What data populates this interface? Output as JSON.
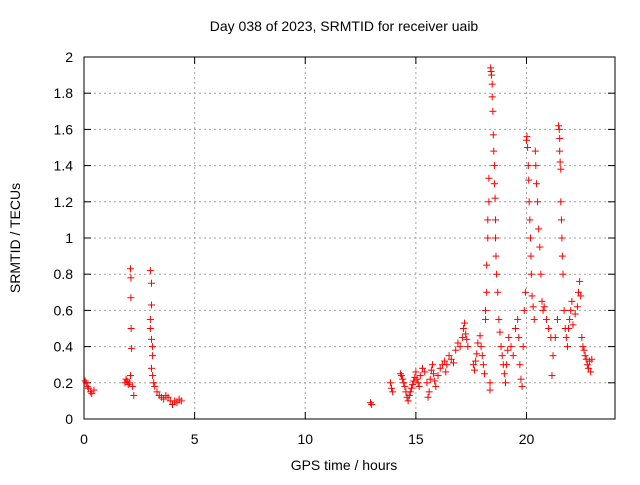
{
  "chart_data": {
    "type": "scatter",
    "title": "Day 038 of 2023, SRMTID for receiver uaib",
    "xlabel": "GPS time / hours",
    "ylabel": "SRMTID / TECUs",
    "xlim": [
      0,
      24
    ],
    "ylim": [
      0,
      2
    ],
    "xticks": [
      0,
      5,
      10,
      15,
      20
    ],
    "xtick_labels": [
      "0",
      "5",
      "10",
      "15",
      "20"
    ],
    "yticks": [
      0,
      0.2,
      0.4,
      0.6,
      0.8,
      1,
      1.2,
      1.4,
      1.6,
      1.8,
      2
    ],
    "ytick_labels": [
      "0",
      "0.2",
      "0.4",
      "0.6",
      "0.8",
      "1",
      "1.2",
      "1.4",
      "1.6",
      "1.8",
      "2"
    ],
    "grid": true,
    "marker": "+",
    "color": "#ff0000",
    "series": [
      {
        "name": "SRMTID",
        "points": [
          [
            0.05,
            0.21
          ],
          [
            0.1,
            0.2
          ],
          [
            0.15,
            0.18
          ],
          [
            0.2,
            0.17
          ],
          [
            0.3,
            0.15
          ],
          [
            0.35,
            0.14
          ],
          [
            0.45,
            0.16
          ],
          [
            1.85,
            0.2
          ],
          [
            1.9,
            0.22
          ],
          [
            1.95,
            0.21
          ],
          [
            2.0,
            0.19
          ],
          [
            2.05,
            0.2
          ],
          [
            2.1,
            0.24
          ],
          [
            2.1,
            0.83
          ],
          [
            2.12,
            0.78
          ],
          [
            2.12,
            0.67
          ],
          [
            2.13,
            0.5
          ],
          [
            2.15,
            0.39
          ],
          [
            2.2,
            0.18
          ],
          [
            2.25,
            0.13
          ],
          [
            3.0,
            0.82
          ],
          [
            3.05,
            0.75
          ],
          [
            3.05,
            0.63
          ],
          [
            3.0,
            0.55
          ],
          [
            3.0,
            0.5
          ],
          [
            3.05,
            0.44
          ],
          [
            3.1,
            0.4
          ],
          [
            3.1,
            0.35
          ],
          [
            3.05,
            0.28
          ],
          [
            3.1,
            0.24
          ],
          [
            3.15,
            0.2
          ],
          [
            3.2,
            0.18
          ],
          [
            3.3,
            0.15
          ],
          [
            3.4,
            0.13
          ],
          [
            3.5,
            0.12
          ],
          [
            3.6,
            0.11
          ],
          [
            3.7,
            0.13
          ],
          [
            3.8,
            0.12
          ],
          [
            3.9,
            0.1
          ],
          [
            4.0,
            0.08
          ],
          [
            4.1,
            0.1
          ],
          [
            4.2,
            0.09
          ],
          [
            4.3,
            0.11
          ],
          [
            4.4,
            0.1
          ],
          [
            12.95,
            0.09
          ],
          [
            13.0,
            0.08
          ],
          [
            13.85,
            0.2
          ],
          [
            13.9,
            0.17
          ],
          [
            13.95,
            0.15
          ],
          [
            14.3,
            0.25
          ],
          [
            14.35,
            0.24
          ],
          [
            14.4,
            0.22
          ],
          [
            14.45,
            0.2
          ],
          [
            14.5,
            0.18
          ],
          [
            14.55,
            0.15
          ],
          [
            14.6,
            0.12
          ],
          [
            14.65,
            0.1
          ],
          [
            14.7,
            0.13
          ],
          [
            14.75,
            0.15
          ],
          [
            14.8,
            0.17
          ],
          [
            14.85,
            0.19
          ],
          [
            14.9,
            0.21
          ],
          [
            14.95,
            0.23
          ],
          [
            15.0,
            0.26
          ],
          [
            15.05,
            0.22
          ],
          [
            15.1,
            0.2
          ],
          [
            15.15,
            0.18
          ],
          [
            15.2,
            0.24
          ],
          [
            15.3,
            0.28
          ],
          [
            15.4,
            0.26
          ],
          [
            15.5,
            0.2
          ],
          [
            15.55,
            0.12
          ],
          [
            15.6,
            0.15
          ],
          [
            15.65,
            0.22
          ],
          [
            15.7,
            0.27
          ],
          [
            15.75,
            0.3
          ],
          [
            15.8,
            0.25
          ],
          [
            15.85,
            0.21
          ],
          [
            15.9,
            0.18
          ],
          [
            16.0,
            0.24
          ],
          [
            16.1,
            0.28
          ],
          [
            16.2,
            0.3
          ],
          [
            16.3,
            0.32
          ],
          [
            16.35,
            0.26
          ],
          [
            16.4,
            0.3
          ],
          [
            16.5,
            0.35
          ],
          [
            16.6,
            0.33
          ],
          [
            16.7,
            0.31
          ],
          [
            16.8,
            0.38
          ],
          [
            16.9,
            0.42
          ],
          [
            17.0,
            0.4
          ],
          [
            17.1,
            0.45
          ],
          [
            17.15,
            0.5
          ],
          [
            17.2,
            0.53
          ],
          [
            17.25,
            0.47
          ],
          [
            17.3,
            0.44
          ],
          [
            17.35,
            0.4
          ],
          [
            17.6,
            0.3
          ],
          [
            17.65,
            0.27
          ],
          [
            17.7,
            0.32
          ],
          [
            17.75,
            0.36
          ],
          [
            17.8,
            0.42
          ],
          [
            17.9,
            0.46
          ],
          [
            17.95,
            0.4
          ],
          [
            18.0,
            0.35
          ],
          [
            18.05,
            0.3
          ],
          [
            18.1,
            0.25
          ],
          [
            18.15,
            0.55
          ],
          [
            18.15,
            0.6
          ],
          [
            18.2,
            0.7
          ],
          [
            18.2,
            0.85
          ],
          [
            18.25,
            1.0
          ],
          [
            18.25,
            1.1
          ],
          [
            18.3,
            1.2
          ],
          [
            18.3,
            1.33
          ],
          [
            18.35,
            0.2
          ],
          [
            18.35,
            0.16
          ],
          [
            18.38,
            1.94
          ],
          [
            18.4,
            1.92
          ],
          [
            18.42,
            1.9
          ],
          [
            18.45,
            1.85
          ],
          [
            18.45,
            1.78
          ],
          [
            18.48,
            1.7
          ],
          [
            18.5,
            1.57
          ],
          [
            18.52,
            1.48
          ],
          [
            18.55,
            1.4
          ],
          [
            18.55,
            1.3
          ],
          [
            18.58,
            1.22
          ],
          [
            18.6,
            1.1
          ],
          [
            18.6,
            1.0
          ],
          [
            18.62,
            0.9
          ],
          [
            18.65,
            0.8
          ],
          [
            18.7,
            0.7
          ],
          [
            18.75,
            0.55
          ],
          [
            18.8,
            0.48
          ],
          [
            18.85,
            0.4
          ],
          [
            18.9,
            0.35
          ],
          [
            18.95,
            0.3
          ],
          [
            19.0,
            0.25
          ],
          [
            19.05,
            0.2
          ],
          [
            19.1,
            0.3
          ],
          [
            19.15,
            0.38
          ],
          [
            19.2,
            0.45
          ],
          [
            19.3,
            0.4
          ],
          [
            19.4,
            0.35
          ],
          [
            19.5,
            0.5
          ],
          [
            19.6,
            0.55
          ],
          [
            19.65,
            0.45
          ],
          [
            19.7,
            0.3
          ],
          [
            19.75,
            0.22
          ],
          [
            19.8,
            0.18
          ],
          [
            19.85,
            0.4
          ],
          [
            19.9,
            0.6
          ],
          [
            19.95,
            0.7
          ],
          [
            20.0,
            1.54
          ],
          [
            20.02,
            1.56
          ],
          [
            20.05,
            1.5
          ],
          [
            20.08,
            1.4
          ],
          [
            20.1,
            1.32
          ],
          [
            20.12,
            1.2
          ],
          [
            20.15,
            1.1
          ],
          [
            20.18,
            1.0
          ],
          [
            20.2,
            0.9
          ],
          [
            20.22,
            0.8
          ],
          [
            20.25,
            0.68
          ],
          [
            20.3,
            0.62
          ],
          [
            20.35,
            0.55
          ],
          [
            20.4,
            1.48
          ],
          [
            20.42,
            1.4
          ],
          [
            20.45,
            1.3
          ],
          [
            20.5,
            1.2
          ],
          [
            20.55,
            1.05
          ],
          [
            20.6,
            0.95
          ],
          [
            20.65,
            0.8
          ],
          [
            20.7,
            0.65
          ],
          [
            20.75,
            0.6
          ],
          [
            20.8,
            0.62
          ],
          [
            20.9,
            0.55
          ],
          [
            21.0,
            0.5
          ],
          [
            21.1,
            0.45
          ],
          [
            21.15,
            0.24
          ],
          [
            21.2,
            0.35
          ],
          [
            21.3,
            0.45
          ],
          [
            21.4,
            0.55
          ],
          [
            21.45,
            1.62
          ],
          [
            21.48,
            1.6
          ],
          [
            21.5,
            1.55
          ],
          [
            21.5,
            1.48
          ],
          [
            21.52,
            1.42
          ],
          [
            21.55,
            1.38
          ],
          [
            21.55,
            1.2
          ],
          [
            21.58,
            1.1
          ],
          [
            21.6,
            1.0
          ],
          [
            21.62,
            0.9
          ],
          [
            21.65,
            0.8
          ],
          [
            21.7,
            0.6
          ],
          [
            21.75,
            0.5
          ],
          [
            21.8,
            0.45
          ],
          [
            21.85,
            0.4
          ],
          [
            21.9,
            0.5
          ],
          [
            21.95,
            0.55
          ],
          [
            22.0,
            0.6
          ],
          [
            22.05,
            0.65
          ],
          [
            22.1,
            0.52
          ],
          [
            22.2,
            0.58
          ],
          [
            22.3,
            0.62
          ],
          [
            22.35,
            0.7
          ],
          [
            22.4,
            0.76
          ],
          [
            22.45,
            0.68
          ],
          [
            22.5,
            0.45
          ],
          [
            22.55,
            0.4
          ],
          [
            22.6,
            0.38
          ],
          [
            22.65,
            0.35
          ],
          [
            22.7,
            0.33
          ],
          [
            22.75,
            0.3
          ],
          [
            22.8,
            0.28
          ],
          [
            22.85,
            0.32
          ],
          [
            22.9,
            0.26
          ],
          [
            22.95,
            0.33
          ]
        ]
      }
    ]
  }
}
